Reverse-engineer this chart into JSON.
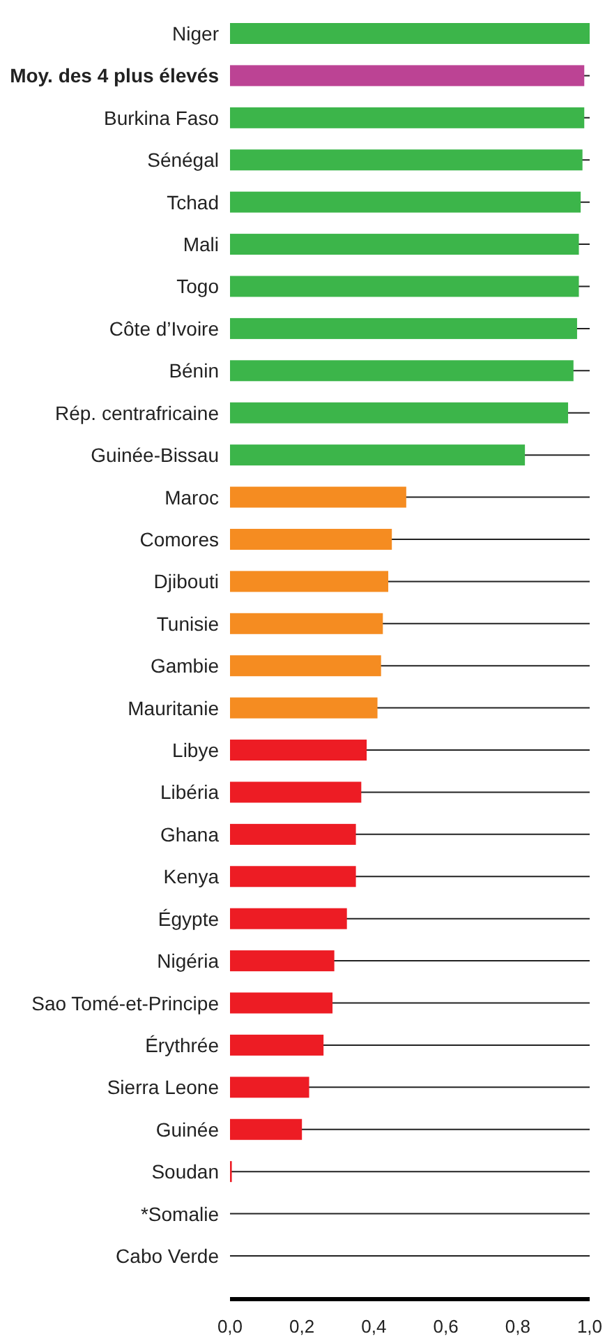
{
  "chart_data": {
    "type": "bar",
    "orientation": "horizontal",
    "categories": [
      "Niger",
      "Moy. des 4 plus élevés",
      "Burkina Faso",
      "Sénégal",
      "Tchad",
      "Mali",
      "Togo",
      "Côte d’Ivoire",
      "Bénin",
      "Rép. centrafricaine",
      "Guinée-Bissau",
      "Maroc",
      "Comores",
      "Djibouti",
      "Tunisie",
      "Gambie",
      "Mauritanie",
      "Libye",
      "Libéria",
      "Ghana",
      "Kenya",
      "Égypte",
      "Nigéria",
      "Sao Tomé-et-Principe",
      "Érythrée",
      "Sierra Leone",
      "Guinée",
      "Soudan",
      "*Somalie",
      "Cabo Verde"
    ],
    "values": [
      1.0,
      0.985,
      0.985,
      0.98,
      0.975,
      0.97,
      0.97,
      0.965,
      0.955,
      0.94,
      0.82,
      0.49,
      0.45,
      0.44,
      0.425,
      0.42,
      0.41,
      0.38,
      0.365,
      0.35,
      0.35,
      0.325,
      0.29,
      0.285,
      0.26,
      0.22,
      0.2,
      0.005,
      null,
      0
    ],
    "colors": [
      "#3cb54a",
      "#bc4394",
      "#3cb54a",
      "#3cb54a",
      "#3cb54a",
      "#3cb54a",
      "#3cb54a",
      "#3cb54a",
      "#3cb54a",
      "#3cb54a",
      "#3cb54a",
      "#f58c21",
      "#f58c21",
      "#f58c21",
      "#f58c21",
      "#f58c21",
      "#f58c21",
      "#ed1c24",
      "#ed1c24",
      "#ed1c24",
      "#ed1c24",
      "#ed1c24",
      "#ed1c24",
      "#ed1c24",
      "#ed1c24",
      "#ed1c24",
      "#ed1c24",
      "#ed1c24",
      "#ed1c24",
      "#ed1c24"
    ],
    "xlim": [
      0,
      1
    ],
    "xticks": [
      {
        "value": 0,
        "label": "0,0"
      },
      {
        "value": 0.2,
        "label": "0,2"
      },
      {
        "value": 0.4,
        "label": "0,4"
      },
      {
        "value": 0.6,
        "label": "0,6"
      },
      {
        "value": 0.8,
        "label": "0,8"
      },
      {
        "value": 1,
        "label": "1,0"
      }
    ],
    "grid": "y"
  }
}
